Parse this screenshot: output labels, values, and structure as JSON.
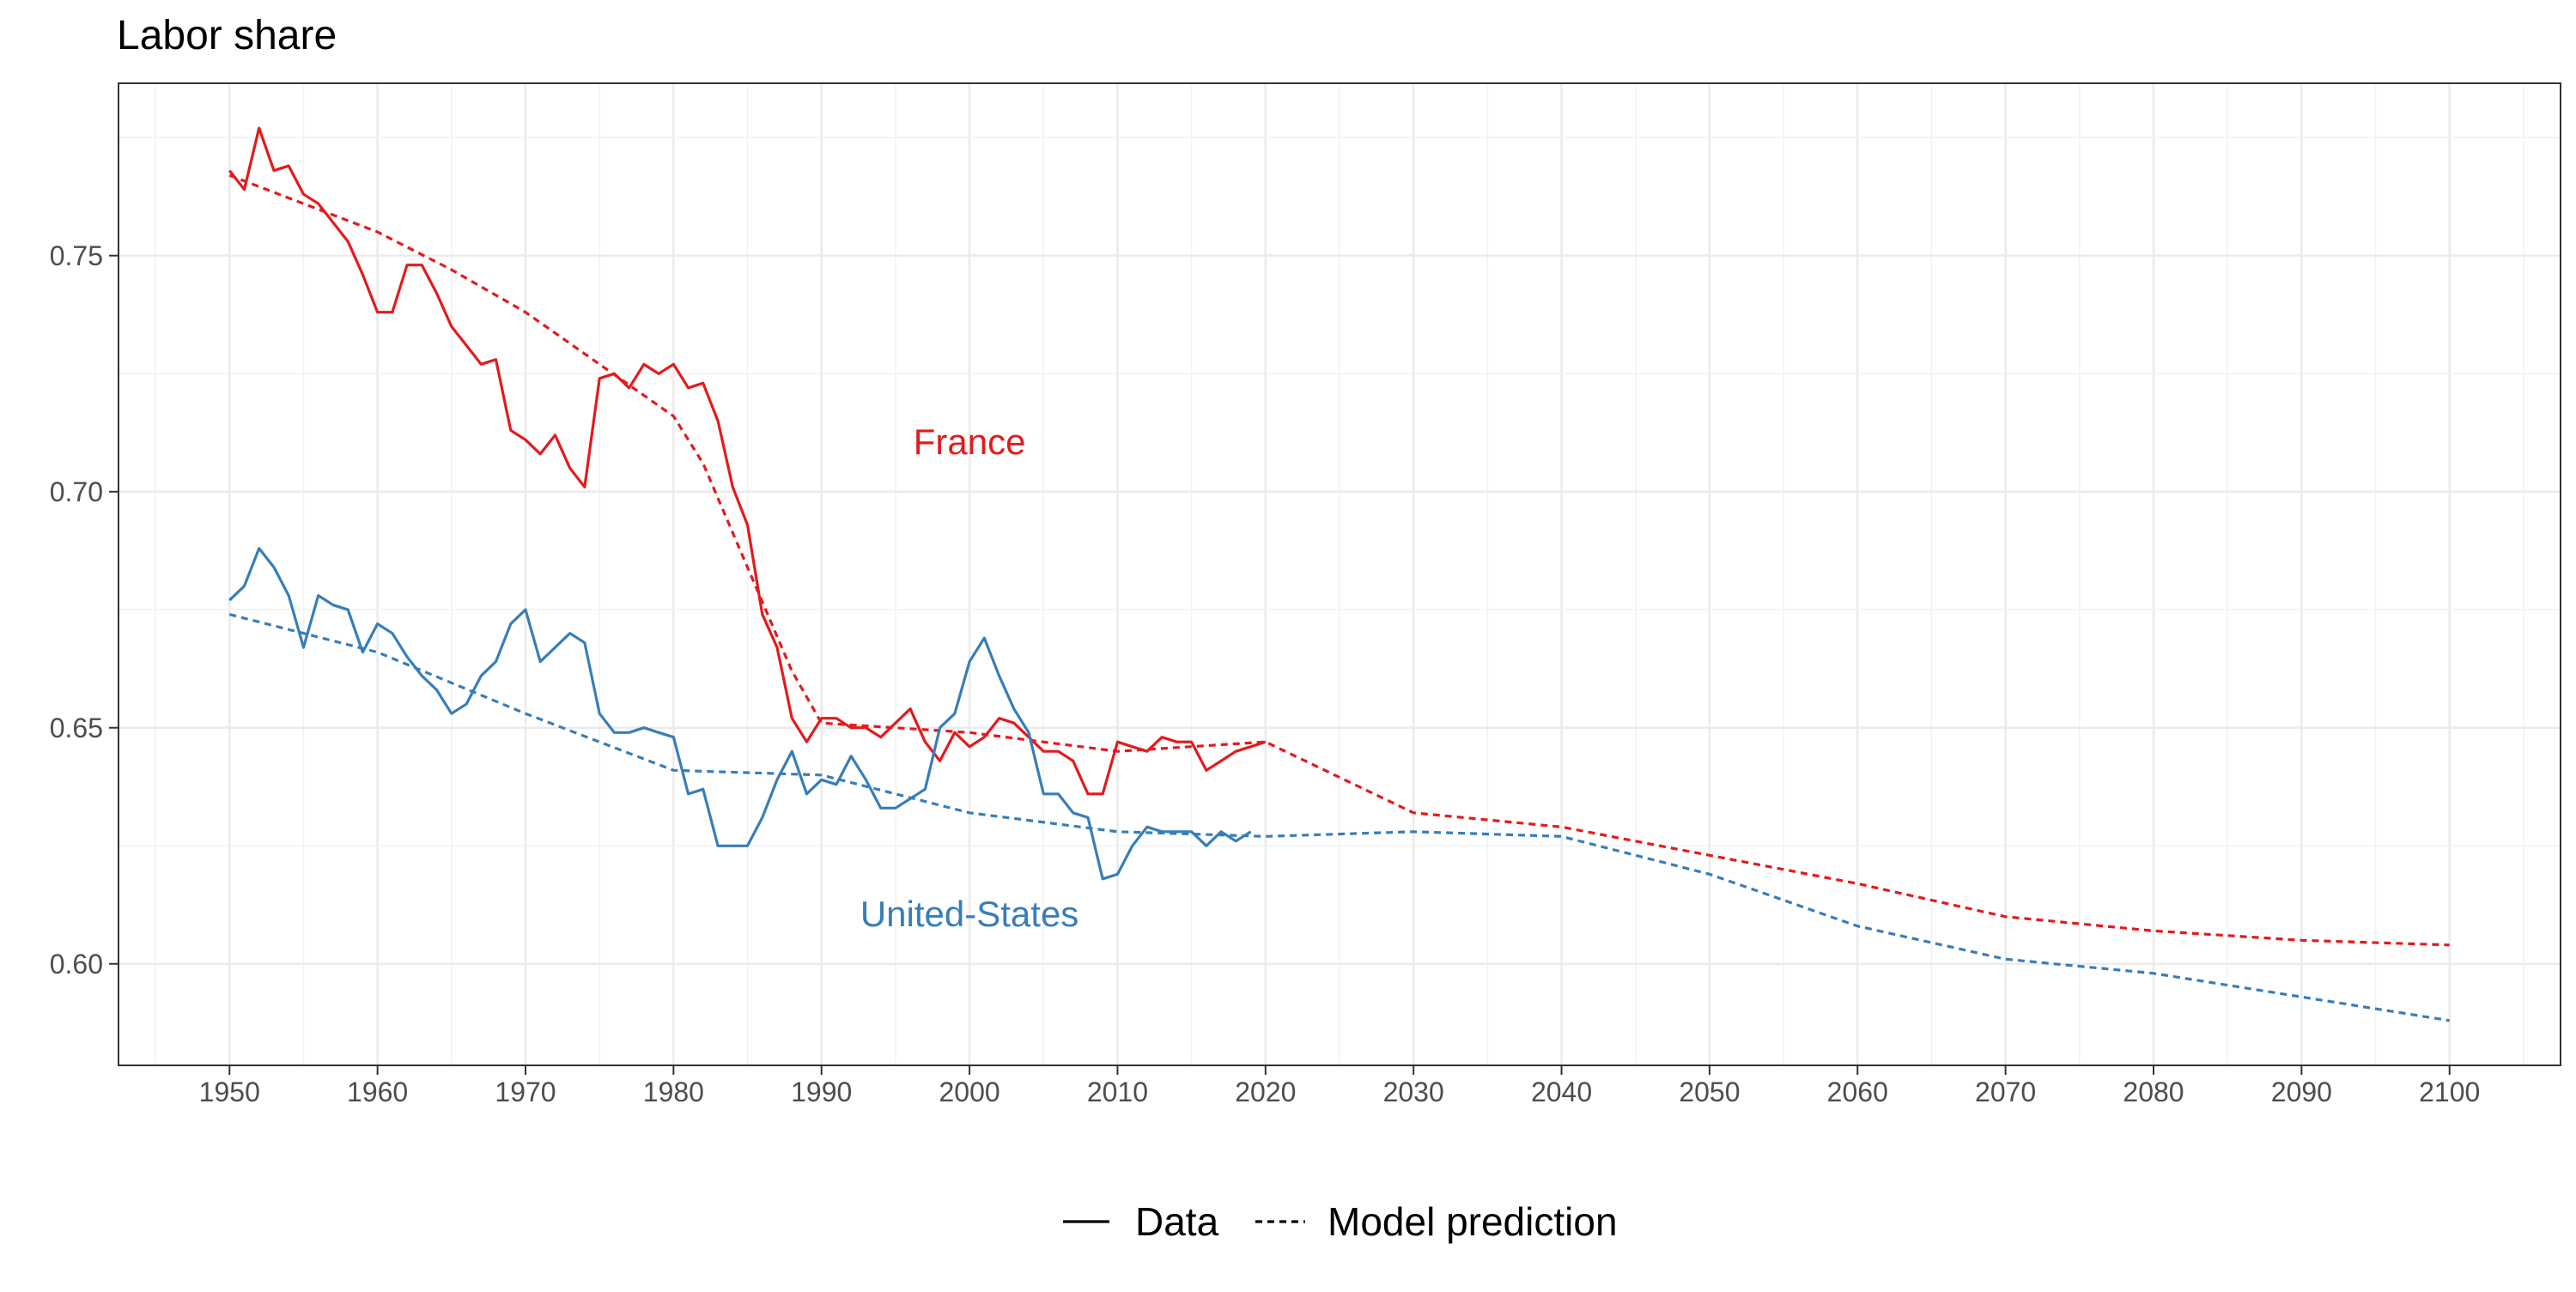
{
  "chart_data": {
    "type": "line",
    "title": "Labor share",
    "xlabel": "",
    "ylabel": "",
    "xlim": [
      1942.5,
      2107.5
    ],
    "ylim": [
      0.5785,
      0.7865
    ],
    "x_ticks": [
      1950,
      1960,
      1970,
      1980,
      1990,
      2000,
      2010,
      2020,
      2030,
      2040,
      2050,
      2060,
      2070,
      2080,
      2090,
      2100
    ],
    "y_ticks": [
      0.6,
      0.65,
      0.7,
      0.75
    ],
    "y_tick_labels": [
      "0.60",
      "0.65",
      "0.70",
      "0.75"
    ],
    "grid": true,
    "legend": {
      "placement": "bottom",
      "entries": [
        {
          "label": "Data",
          "linetype": "solid"
        },
        {
          "label": "Model prediction",
          "linetype": "dashed"
        }
      ]
    },
    "annotations": [
      {
        "text": "France",
        "x": 2000,
        "y": 0.708,
        "color": "#e41a1c"
      },
      {
        "text": "United-States",
        "x": 2000,
        "y": 0.608,
        "color": "#377eb8"
      }
    ],
    "series": [
      {
        "country": "France",
        "kind": "data",
        "color": "#e41a1c",
        "linetype": "solid",
        "points": [
          [
            1950,
            0.768
          ],
          [
            1951,
            0.764
          ],
          [
            1952,
            0.777
          ],
          [
            1953,
            0.768
          ],
          [
            1954,
            0.769
          ],
          [
            1955,
            0.763
          ],
          [
            1956,
            0.761
          ],
          [
            1957,
            0.757
          ],
          [
            1958,
            0.753
          ],
          [
            1959,
            0.746
          ],
          [
            1960,
            0.738
          ],
          [
            1961,
            0.738
          ],
          [
            1962,
            0.748
          ],
          [
            1963,
            0.748
          ],
          [
            1964,
            0.742
          ],
          [
            1965,
            0.735
          ],
          [
            1966,
            0.731
          ],
          [
            1967,
            0.727
          ],
          [
            1968,
            0.728
          ],
          [
            1969,
            0.713
          ],
          [
            1970,
            0.711
          ],
          [
            1971,
            0.708
          ],
          [
            1972,
            0.712
          ],
          [
            1973,
            0.705
          ],
          [
            1974,
            0.701
          ],
          [
            1975,
            0.724
          ],
          [
            1976,
            0.725
          ],
          [
            1977,
            0.722
          ],
          [
            1978,
            0.727
          ],
          [
            1979,
            0.725
          ],
          [
            1980,
            0.727
          ],
          [
            1981,
            0.722
          ],
          [
            1982,
            0.723
          ],
          [
            1983,
            0.715
          ],
          [
            1984,
            0.701
          ],
          [
            1985,
            0.693
          ],
          [
            1986,
            0.674
          ],
          [
            1987,
            0.667
          ],
          [
            1988,
            0.652
          ],
          [
            1989,
            0.647
          ],
          [
            1990,
            0.652
          ],
          [
            1991,
            0.652
          ],
          [
            1992,
            0.65
          ],
          [
            1993,
            0.65
          ],
          [
            1994,
            0.648
          ],
          [
            1995,
            0.651
          ],
          [
            1996,
            0.654
          ],
          [
            1997,
            0.647
          ],
          [
            1998,
            0.643
          ],
          [
            1999,
            0.649
          ],
          [
            2000,
            0.646
          ],
          [
            2001,
            0.648
          ],
          [
            2002,
            0.652
          ],
          [
            2003,
            0.651
          ],
          [
            2004,
            0.648
          ],
          [
            2005,
            0.645
          ],
          [
            2006,
            0.645
          ],
          [
            2007,
            0.643
          ],
          [
            2008,
            0.636
          ],
          [
            2009,
            0.636
          ],
          [
            2010,
            0.647
          ],
          [
            2011,
            0.646
          ],
          [
            2012,
            0.645
          ],
          [
            2013,
            0.648
          ],
          [
            2014,
            0.647
          ],
          [
            2015,
            0.647
          ],
          [
            2016,
            0.641
          ],
          [
            2017,
            0.643
          ],
          [
            2018,
            0.645
          ],
          [
            2019,
            0.646
          ],
          [
            2020,
            0.647
          ]
        ]
      },
      {
        "country": "France",
        "kind": "model",
        "color": "#e41a1c",
        "linetype": "dashed",
        "points": [
          [
            1950,
            0.767
          ],
          [
            1955,
            0.761
          ],
          [
            1960,
            0.755
          ],
          [
            1965,
            0.747
          ],
          [
            1970,
            0.738
          ],
          [
            1975,
            0.727
          ],
          [
            1980,
            0.716
          ],
          [
            1982,
            0.706
          ],
          [
            1985,
            0.684
          ],
          [
            1988,
            0.662
          ],
          [
            1990,
            0.651
          ],
          [
            2000,
            0.649
          ],
          [
            2010,
            0.645
          ],
          [
            2020,
            0.647
          ],
          [
            2030,
            0.632
          ],
          [
            2040,
            0.629
          ],
          [
            2050,
            0.623
          ],
          [
            2060,
            0.617
          ],
          [
            2070,
            0.61
          ],
          [
            2080,
            0.607
          ],
          [
            2090,
            0.605
          ],
          [
            2100,
            0.604
          ]
        ]
      },
      {
        "country": "United-States",
        "kind": "data",
        "color": "#377eb8",
        "linetype": "solid",
        "points": [
          [
            1950,
            0.677
          ],
          [
            1951,
            0.68
          ],
          [
            1952,
            0.688
          ],
          [
            1953,
            0.684
          ],
          [
            1954,
            0.678
          ],
          [
            1955,
            0.667
          ],
          [
            1956,
            0.678
          ],
          [
            1957,
            0.676
          ],
          [
            1958,
            0.675
          ],
          [
            1959,
            0.666
          ],
          [
            1960,
            0.672
          ],
          [
            1961,
            0.67
          ],
          [
            1962,
            0.665
          ],
          [
            1963,
            0.661
          ],
          [
            1964,
            0.658
          ],
          [
            1965,
            0.653
          ],
          [
            1966,
            0.655
          ],
          [
            1967,
            0.661
          ],
          [
            1968,
            0.664
          ],
          [
            1969,
            0.672
          ],
          [
            1970,
            0.675
          ],
          [
            1971,
            0.664
          ],
          [
            1972,
            0.667
          ],
          [
            1973,
            0.67
          ],
          [
            1974,
            0.668
          ],
          [
            1975,
            0.653
          ],
          [
            1976,
            0.649
          ],
          [
            1977,
            0.649
          ],
          [
            1978,
            0.65
          ],
          [
            1979,
            0.649
          ],
          [
            1980,
            0.648
          ],
          [
            1981,
            0.636
          ],
          [
            1982,
            0.637
          ],
          [
            1983,
            0.625
          ],
          [
            1984,
            0.625
          ],
          [
            1985,
            0.625
          ],
          [
            1986,
            0.631
          ],
          [
            1987,
            0.639
          ],
          [
            1988,
            0.645
          ],
          [
            1989,
            0.636
          ],
          [
            1990,
            0.639
          ],
          [
            1991,
            0.638
          ],
          [
            1992,
            0.644
          ],
          [
            1993,
            0.639
          ],
          [
            1994,
            0.633
          ],
          [
            1995,
            0.633
          ],
          [
            1996,
            0.635
          ],
          [
            1997,
            0.637
          ],
          [
            1998,
            0.65
          ],
          [
            1999,
            0.653
          ],
          [
            2000,
            0.664
          ],
          [
            2001,
            0.669
          ],
          [
            2002,
            0.661
          ],
          [
            2003,
            0.654
          ],
          [
            2004,
            0.649
          ],
          [
            2005,
            0.636
          ],
          [
            2006,
            0.636
          ],
          [
            2007,
            0.632
          ],
          [
            2008,
            0.631
          ],
          [
            2009,
            0.618
          ],
          [
            2010,
            0.619
          ],
          [
            2011,
            0.625
          ],
          [
            2012,
            0.629
          ],
          [
            2013,
            0.628
          ],
          [
            2014,
            0.628
          ],
          [
            2015,
            0.628
          ],
          [
            2016,
            0.625
          ],
          [
            2017,
            0.628
          ],
          [
            2018,
            0.626
          ],
          [
            2019,
            0.628
          ]
        ]
      },
      {
        "country": "United-States",
        "kind": "model",
        "color": "#377eb8",
        "linetype": "dashed",
        "points": [
          [
            1950,
            0.674
          ],
          [
            1960,
            0.666
          ],
          [
            1970,
            0.653
          ],
          [
            1980,
            0.641
          ],
          [
            1990,
            0.64
          ],
          [
            2000,
            0.632
          ],
          [
            2010,
            0.628
          ],
          [
            2020,
            0.627
          ],
          [
            2030,
            0.628
          ],
          [
            2040,
            0.627
          ],
          [
            2050,
            0.619
          ],
          [
            2060,
            0.608
          ],
          [
            2070,
            0.601
          ],
          [
            2080,
            0.598
          ],
          [
            2090,
            0.593
          ],
          [
            2100,
            0.588
          ]
        ]
      }
    ]
  }
}
